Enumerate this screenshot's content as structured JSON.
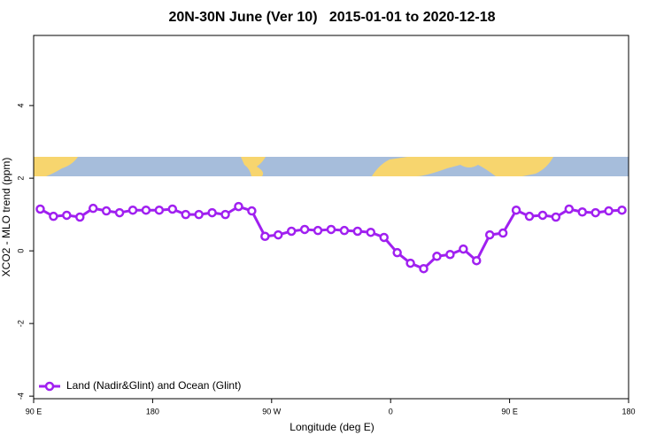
{
  "chart_data": {
    "type": "line",
    "title": "20N-30N June (Ver 10)   2015-01-01 to 2020-12-18",
    "xlabel": "Longitude (deg E)",
    "ylabel": "XCO2 - MLO trend (ppm)",
    "x": [
      95,
      105,
      115,
      125,
      135,
      145,
      155,
      165,
      175,
      185,
      195,
      205,
      215,
      225,
      235,
      245,
      255,
      265,
      275,
      285,
      295,
      305,
      315,
      325,
      335,
      345,
      355,
      365,
      375,
      385,
      395,
      405,
      415,
      425,
      435,
      445,
      455,
      465,
      475,
      485,
      495,
      505,
      515,
      525,
      535
    ],
    "series": [
      {
        "name": "Land (Nadir&Glint) and Ocean (Glint)",
        "color": "#a020f0",
        "values": [
          1.15,
          0.95,
          0.98,
          0.93,
          1.17,
          1.1,
          1.05,
          1.12,
          1.12,
          1.12,
          1.15,
          1.0,
          1.0,
          1.05,
          1.0,
          1.22,
          1.1,
          0.4,
          0.44,
          0.54,
          0.59,
          0.56,
          0.59,
          0.56,
          0.54,
          0.51,
          0.37,
          -0.05,
          -0.34,
          -0.49,
          -0.15,
          -0.1,
          0.05,
          -0.27,
          0.44,
          0.49,
          1.12,
          0.95,
          0.98,
          0.93,
          1.15,
          1.07,
          1.05,
          1.1,
          1.12
        ]
      }
    ],
    "xlim": [
      90,
      540
    ],
    "xticks": [
      {
        "value": 90,
        "label": "90 E"
      },
      180,
      {
        "value": 270,
        "label": "90 W"
      },
      {
        "value": 360,
        "label": "0"
      },
      {
        "value": 450,
        "label": "90 E"
      },
      {
        "value": 540,
        "label": "180"
      }
    ],
    "ylim": [
      -4.07,
      5.93
    ],
    "yticks": [
      -4,
      -2,
      0,
      2,
      4
    ],
    "legend": "bottomleft"
  }
}
